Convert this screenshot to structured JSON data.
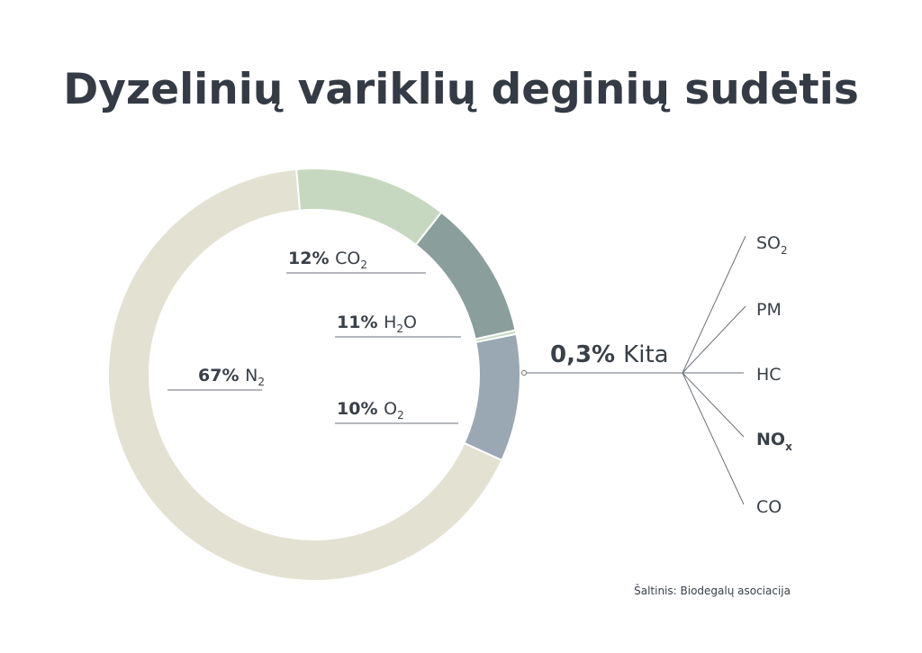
{
  "chart_data": {
    "type": "pie",
    "title": "Dyzelinių variklių deginių sudėtis",
    "slices": [
      {
        "label": "N",
        "sub": "2",
        "value": 67,
        "value_text": "67%",
        "color": "#e3e2d2"
      },
      {
        "label": "CO",
        "sub": "2",
        "value": 12,
        "value_text": "12%",
        "color": "#c6d9c0"
      },
      {
        "label": "H",
        "sub": "2",
        "label_tail": "O",
        "value": 11,
        "value_text": "11%",
        "color": "#8a9e9b"
      },
      {
        "label": "Kita",
        "value": 0.3,
        "value_text": "0,3%",
        "color": "#c6d9c0"
      },
      {
        "label": "O",
        "sub": "2",
        "value": 10,
        "value_text": "10%",
        "color": "#9aa8b4"
      }
    ],
    "kita_breakdown": [
      {
        "label": "SO",
        "sub": "2",
        "bold": false
      },
      {
        "label": "PM",
        "bold": false
      },
      {
        "label": "HC",
        "bold": false
      },
      {
        "label": "NO",
        "sub": "x",
        "bold": true
      },
      {
        "label": "CO",
        "bold": false
      }
    ],
    "source": "Šaltinis: Biodegalų asociacija"
  }
}
